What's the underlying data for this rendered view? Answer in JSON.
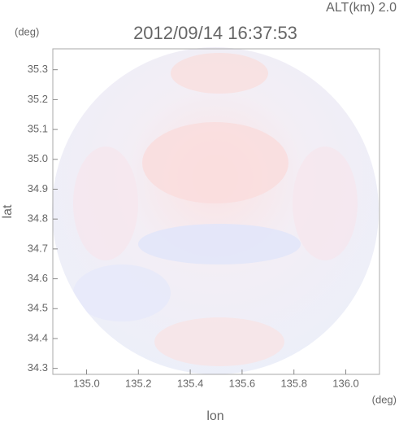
{
  "chart_data": {
    "type": "image",
    "title": "2012/09/14 16:37:53",
    "subtitle": "ALT(km) 2.0",
    "x_label": "lon",
    "x_unit": "(deg)",
    "y_label": "lat",
    "y_unit": "(deg)",
    "xlim": [
      134.87,
      136.13
    ],
    "xticks": [
      {
        "value": 135.0,
        "label": "135.0"
      },
      135.2,
      135.4,
      135.6,
      135.8,
      {
        "value": 136.0,
        "label": "136.0"
      }
    ],
    "ylim": [
      34.28,
      35.37
    ],
    "yticks": [
      34.3,
      34.4,
      34.5,
      34.6,
      34.7,
      34.8,
      34.9,
      {
        "value": 35.0,
        "label": "35.0"
      },
      35.1,
      35.2,
      35.3
    ]
  }
}
